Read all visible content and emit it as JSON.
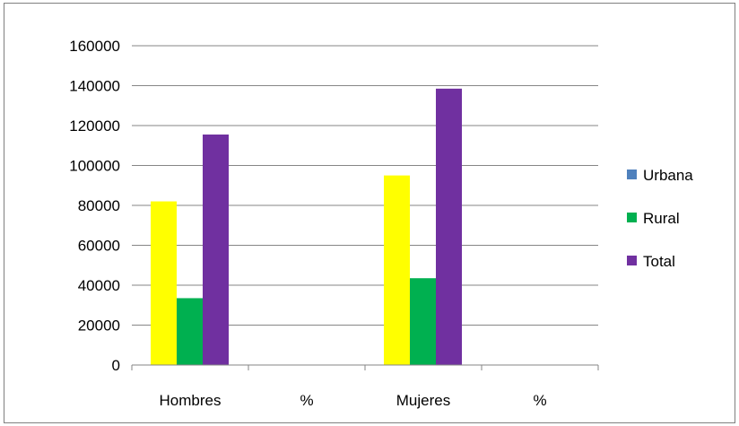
{
  "chart_data": {
    "type": "bar",
    "categories": [
      "Hombres",
      "%",
      "Mujeres",
      "%"
    ],
    "series": [
      {
        "name": "",
        "color": "#ffff00",
        "values": [
          82000,
          null,
          95000,
          null
        ]
      },
      {
        "name": "Rural",
        "color": "#00b050",
        "values": [
          33500,
          null,
          43500,
          null
        ]
      },
      {
        "name": "Total",
        "color": "#7030a0",
        "values": [
          115500,
          null,
          138500,
          null
        ]
      }
    ],
    "legend": [
      {
        "label": "Urbana",
        "color": "#4f81bd"
      },
      {
        "label": "Rural",
        "color": "#00b050"
      },
      {
        "label": "Total",
        "color": "#7030a0"
      }
    ],
    "ylim": [
      0,
      160000
    ],
    "yticks": [
      "0",
      "20000",
      "40000",
      "60000",
      "80000",
      "100000",
      "120000",
      "140000",
      "160000"
    ],
    "grid": true,
    "legend_position": "right",
    "gridline_color": "#868686"
  }
}
